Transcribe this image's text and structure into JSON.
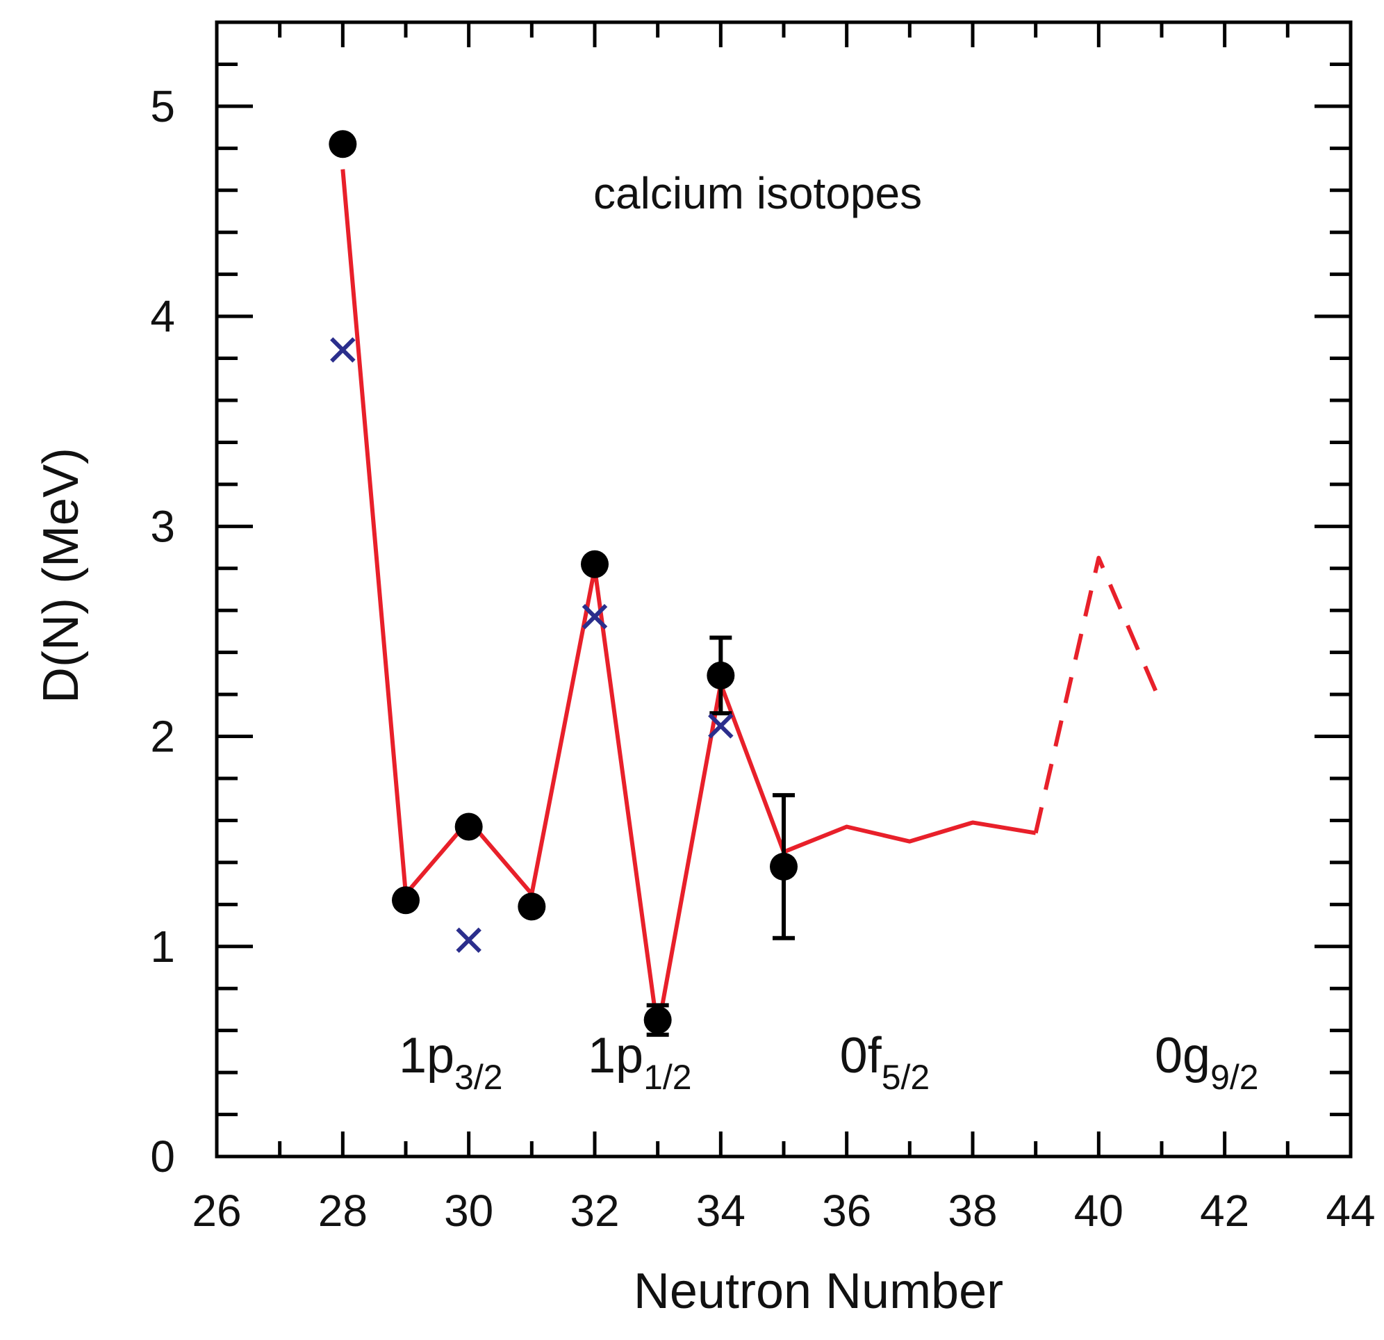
{
  "chart_data": {
    "type": "line",
    "title": "",
    "annotation": "calcium isotopes",
    "xlabel": "Neutron Number",
    "ylabel": "D(N)  (MeV)",
    "xlim": [
      26,
      44
    ],
    "ylim": [
      0,
      5.4
    ],
    "x_ticks": [
      26,
      28,
      30,
      32,
      34,
      36,
      38,
      40,
      42,
      44
    ],
    "x_tick_labels": [
      "26",
      "28",
      "30",
      "32",
      "34",
      "36",
      "38",
      "40",
      "42",
      "44"
    ],
    "x_minor_step": 1,
    "y_ticks": [
      0,
      1,
      2,
      3,
      4,
      5
    ],
    "y_tick_labels": [
      "0",
      "1",
      "2",
      "3",
      "4",
      "5"
    ],
    "y_minor_step": 0.2,
    "grid": false,
    "colors": {
      "theory_line": "#e8202a",
      "experiment": "#000000",
      "cross": "#2b2e8c",
      "axis": "#000000"
    },
    "series": [
      {
        "name": "theory (solid)",
        "style": "line",
        "x": [
          28,
          29,
          30,
          31,
          32,
          33,
          34,
          35,
          36,
          37,
          38,
          39
        ],
        "y": [
          4.7,
          1.25,
          1.6,
          1.25,
          2.8,
          0.6,
          2.25,
          1.45,
          1.57,
          1.5,
          1.59,
          1.54
        ]
      },
      {
        "name": "theory (dashed)",
        "style": "dashed-line",
        "x": [
          39,
          40,
          41
        ],
        "y": [
          1.54,
          2.85,
          2.15
        ]
      },
      {
        "name": "experiment",
        "style": "filled-circle",
        "x": [
          28,
          29,
          30,
          31,
          32,
          33,
          34,
          35
        ],
        "y": [
          4.82,
          1.22,
          1.57,
          1.19,
          2.82,
          0.65,
          2.29,
          1.38
        ],
        "err": [
          null,
          null,
          null,
          null,
          null,
          0.07,
          0.18,
          0.34
        ]
      },
      {
        "name": "calculation",
        "style": "cross",
        "x": [
          28,
          30,
          32,
          34
        ],
        "y": [
          3.84,
          1.03,
          2.57,
          2.05
        ]
      }
    ],
    "orbital_labels": [
      {
        "main": "1p",
        "sub": "3/2",
        "x": 29.0
      },
      {
        "main": "1p",
        "sub": "1/2",
        "x": 32.0
      },
      {
        "main": "0f",
        "sub": "5/2",
        "x": 36.0
      },
      {
        "main": "0g",
        "sub": "9/2",
        "x": 41.0
      }
    ],
    "orbital_label_y": 0.5
  }
}
